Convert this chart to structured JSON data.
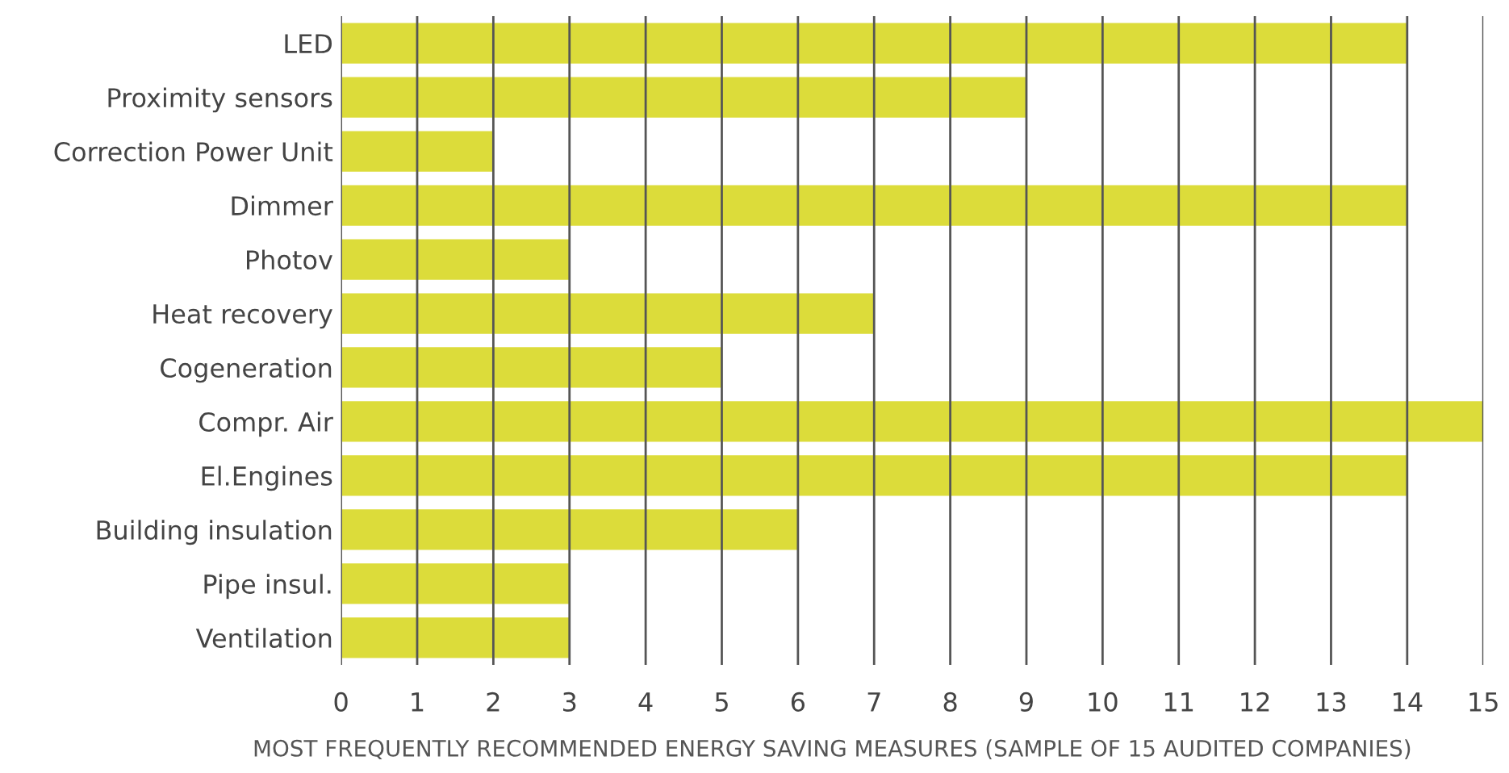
{
  "chart_data": {
    "type": "bar",
    "orientation": "horizontal",
    "xlabel": "MOST FREQUENTLY RECOMMENDED ENERGY SAVING MEASURES (SAMPLE OF 15 AUDITED COMPANIES)",
    "categories": [
      "LED",
      "Proximity sensors",
      "Correction Power Unit",
      "Dimmer",
      "Photov",
      "Heat recovery",
      "Cogeneration",
      "Compr. Air",
      "El.Engines",
      "Building insulation",
      "Pipe insul.",
      "Ventilation"
    ],
    "values": [
      14,
      9,
      2,
      14,
      3,
      7,
      5,
      15,
      14,
      6,
      3,
      3
    ],
    "color": "#dcdc3a",
    "xlim": [
      0,
      15
    ],
    "xticks": [
      0,
      1,
      2,
      3,
      4,
      5,
      6,
      7,
      8,
      9,
      10,
      11,
      12,
      13,
      14,
      15
    ],
    "grid": "x",
    "legend": false
  }
}
